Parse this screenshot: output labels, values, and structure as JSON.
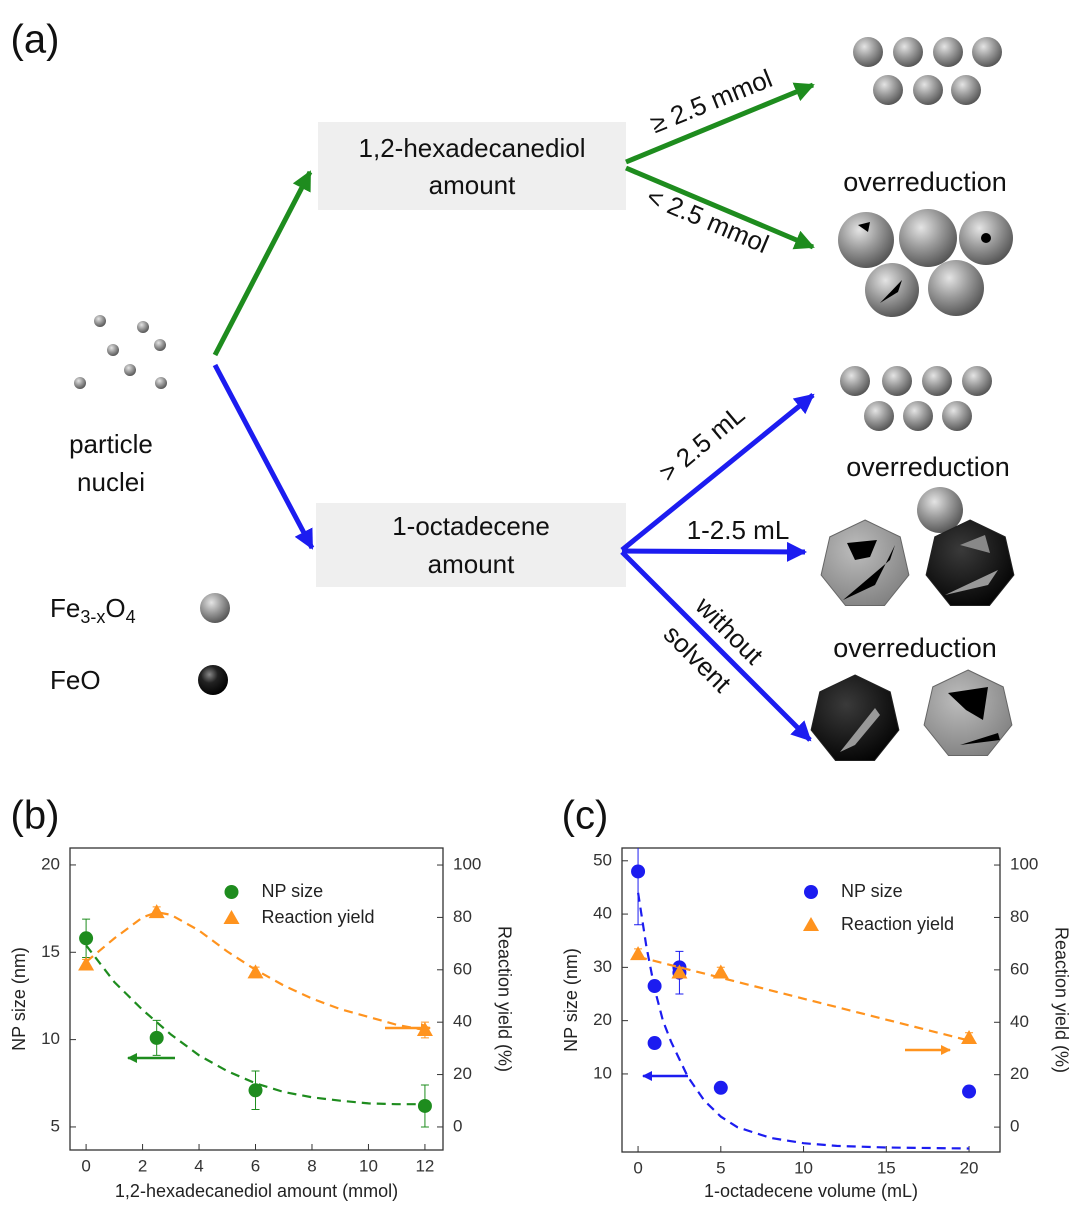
{
  "diagram": {
    "label": "(a)",
    "reagents": [
      {
        "lines": [
          "1,2-hexadecanediol",
          "amount"
        ]
      },
      {
        "lines": [
          "1-octadecene",
          "amount"
        ]
      }
    ],
    "start": {
      "lines": [
        "particle",
        "nuclei"
      ]
    },
    "branches": [
      {
        "lines": [
          "≥ 2.5 mmol"
        ]
      },
      {
        "lines": [
          "< 2.5 mmol"
        ]
      },
      {
        "lines": [
          "> 2.5 mL"
        ]
      },
      {
        "lines": [
          "1-2.5 mL"
        ]
      },
      {
        "lines": [
          "without",
          "solvent"
        ]
      }
    ],
    "outcomes": [
      "overreduction",
      "overreduction",
      "overreduction"
    ],
    "legend": [
      {
        "parts": [
          "Fe",
          "3-x",
          "O",
          "4"
        ]
      },
      {
        "parts": [
          "FeO"
        ]
      }
    ]
  },
  "chart_data": [
    {
      "type": "scatter",
      "panel_label": "(b)",
      "xlabel": "1,2-hexadecanediol amount (mmol)",
      "ylabel": "NP size (nm)",
      "y2label": "Reaction yield (%)",
      "xlim": [
        -0.57,
        12.64
      ],
      "xticks": [
        0,
        2,
        4,
        6,
        8,
        10,
        12
      ],
      "ylim": [
        3.68,
        20.97
      ],
      "yticks": [
        5,
        10,
        15,
        20
      ],
      "y2lim": [
        -8.8,
        106.5
      ],
      "y2ticks": [
        0,
        20,
        40,
        60,
        80,
        100
      ],
      "legend": "upper right",
      "series": [
        {
          "name": "NP size",
          "color": "#1e8c1e",
          "marker": "circle",
          "x": [
            0,
            2.5,
            6,
            12
          ],
          "values": [
            15.8,
            10.1,
            7.1,
            6.2
          ],
          "errors": [
            1.1,
            1.0,
            1.1,
            1.2
          ],
          "fit": {
            "x": [
              0,
              1,
              2,
              3,
              4,
              5,
              6,
              7,
              8,
              9,
              10,
              11,
              12
            ],
            "values": [
              15.4,
              13.3,
              11.7,
              10.3,
              9.1,
              8.2,
              7.5,
              7.0,
              6.7,
              6.5,
              6.35,
              6.3,
              6.3
            ]
          }
        },
        {
          "name": "Reaction yield",
          "color": "#ff931e",
          "marker": "triangle",
          "axis": "y2",
          "x": [
            0,
            2.5,
            6,
            12
          ],
          "values": [
            62,
            82,
            59,
            37
          ],
          "errors": [
            2,
            2,
            2,
            3
          ],
          "fit": {
            "x": [
              0,
              1,
              2,
              2.5,
              3,
              4,
              5,
              6,
              7,
              8,
              9,
              10,
              11,
              12
            ],
            "values": [
              63,
              72,
              80,
              82,
              81,
              75,
              67,
              60,
              54,
              49,
              45,
              42,
              39,
              37
            ]
          }
        }
      ]
    },
    {
      "type": "scatter",
      "panel_label": "(c)",
      "xlabel": "1-octadecene volume (mL)",
      "ylabel": "NP size (nm)",
      "y2label": "Reaction yield (%)",
      "xlim": [
        -0.97,
        21.87
      ],
      "xticks": [
        0,
        5,
        10,
        15,
        20
      ],
      "ylim": [
        -4.65,
        52.4
      ],
      "yticks": [
        10,
        20,
        30,
        40,
        50
      ],
      "y2lim": [
        -9.5,
        106.5
      ],
      "y2ticks": [
        0,
        20,
        40,
        60,
        80,
        100
      ],
      "legend": "upper right",
      "series": [
        {
          "name": "NP size",
          "color": "#1c1cf0",
          "marker": "circle",
          "x": [
            0,
            1,
            1,
            2.5,
            2.5,
            5,
            20
          ],
          "values": [
            48,
            26.5,
            15.8,
            30,
            29,
            7.4,
            6.7
          ],
          "errors": [
            10,
            0,
            0,
            0,
            4,
            0,
            1
          ],
          "fit": {
            "x": [
              0,
              0.5,
              1,
              1.5,
              2,
              3,
              4,
              5,
              6,
              8,
              10,
              12,
              15,
              20
            ],
            "values": [
              44,
              34,
              26,
              20,
              16,
              9.5,
              5,
              2,
              0,
              -2,
              -3,
              -3.5,
              -3.8,
              -4
            ]
          }
        },
        {
          "name": "Reaction yield",
          "color": "#ff931e",
          "marker": "triangle",
          "axis": "y2",
          "x": [
            0,
            2.5,
            5,
            20
          ],
          "values": [
            66,
            59,
            59,
            34
          ],
          "errors": [
            2,
            2,
            2,
            2
          ],
          "fit": {
            "x": [
              0,
              20
            ],
            "values": [
              65,
              33
            ]
          }
        }
      ]
    }
  ]
}
